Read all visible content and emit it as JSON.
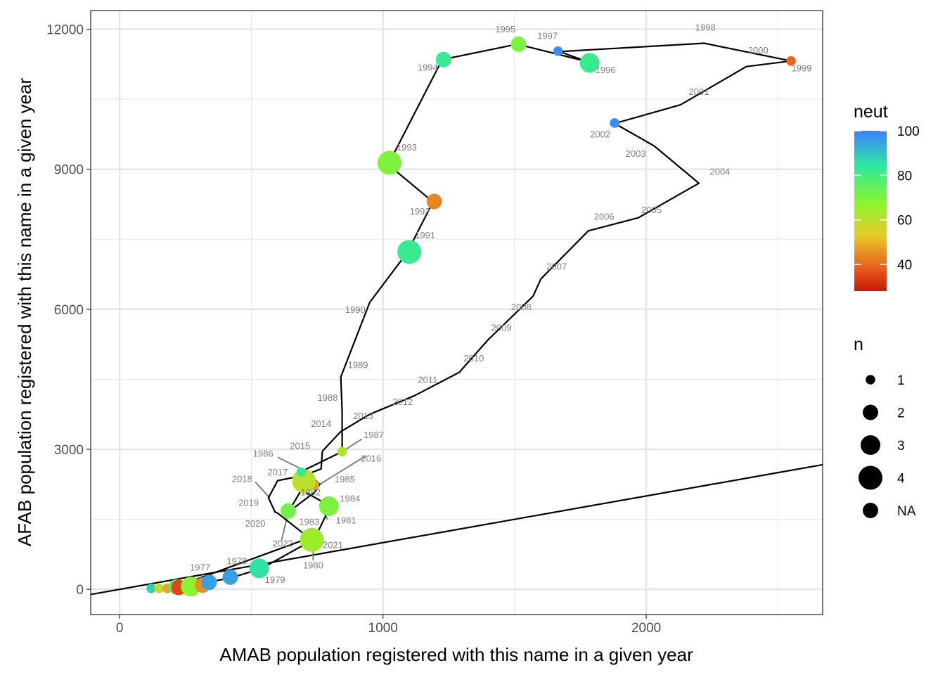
{
  "chart_data": {
    "type": "scatter",
    "xlabel": "AMAB population registered with this name in a given year",
    "ylabel": "AFAB population registered with this name in a given year",
    "xlim": [
      -110,
      2670
    ],
    "ylim": [
      -540,
      12400
    ],
    "x_ticks": [
      0,
      1000,
      2000
    ],
    "y_ticks": [
      0,
      3000,
      6000,
      9000,
      12000
    ],
    "grid": true,
    "reference_line": {
      "type": "y=x",
      "points": [
        [
          -110,
          -110
        ],
        [
          2670,
          2670
        ]
      ]
    },
    "path_order": [
      "1977",
      "1978",
      "1979",
      "1980",
      "1981",
      "1982",
      "1983",
      "1984",
      "1985",
      "1986",
      "1987",
      "1988",
      "1989",
      "1990",
      "1991",
      "1992",
      "1993",
      "1994",
      "1995",
      "1996",
      "1997",
      "1998",
      "1999",
      "2000",
      "2001",
      "2002",
      "2003",
      "2004",
      "2005",
      "2006",
      "2007",
      "2008",
      "2009",
      "2010",
      "2011",
      "2012",
      "2013",
      "2014",
      "2015",
      "2016",
      "2017",
      "2018",
      "2019",
      "2020",
      "2021",
      "2022"
    ],
    "path_points": [
      [
        310,
        130
      ],
      [
        420,
        240
      ],
      [
        540,
        450
      ],
      [
        740,
        1080
      ],
      [
        800,
        1780
      ],
      [
        690,
        2130
      ],
      [
        640,
        1650
      ],
      [
        740,
        2080
      ],
      [
        760,
        2250
      ],
      [
        700,
        2550
      ],
      [
        845,
        2950
      ],
      [
        845,
        3800
      ],
      [
        840,
        4550
      ],
      [
        950,
        6150
      ],
      [
        1090,
        7200
      ],
      [
        1190,
        8300
      ],
      [
        1020,
        9100
      ],
      [
        1225,
        11350
      ],
      [
        1510,
        11680
      ],
      [
        1780,
        11300
      ],
      [
        1670,
        11520
      ],
      [
        2220,
        11700
      ],
      [
        2550,
        11320
      ],
      [
        2380,
        11200
      ],
      [
        2130,
        10380
      ],
      [
        1880,
        9980
      ],
      [
        2030,
        9500
      ],
      [
        2200,
        8700
      ],
      [
        1970,
        7960
      ],
      [
        1780,
        7680
      ],
      [
        1600,
        6650
      ],
      [
        1570,
        6280
      ],
      [
        1400,
        5350
      ],
      [
        1290,
        4650
      ],
      [
        1120,
        4150
      ],
      [
        950,
        3750
      ],
      [
        840,
        3380
      ],
      [
        770,
        2960
      ],
      [
        765,
        2580
      ],
      [
        700,
        2440
      ],
      [
        600,
        2330
      ],
      [
        565,
        1960
      ],
      [
        590,
        1660
      ],
      [
        600,
        1630
      ],
      [
        720,
        1100
      ],
      [
        260,
        150
      ]
    ],
    "points": [
      {
        "x": 120,
        "y": 20,
        "n": 1,
        "neut": 88
      },
      {
        "x": 150,
        "y": 20,
        "n": 1,
        "neut": 60
      },
      {
        "x": 180,
        "y": 20,
        "n": 1,
        "neut": 48
      },
      {
        "x": 215,
        "y": 50,
        "n": 2,
        "neut": 78
      },
      {
        "x": 225,
        "y": 40,
        "n": 2,
        "neut": 35
      },
      {
        "x": 270,
        "y": 60,
        "n": 3,
        "neut": 68
      },
      {
        "x": 315,
        "y": 90,
        "n": 2,
        "neut": 45
      },
      {
        "x": 340,
        "y": 150,
        "n": 2,
        "neut": 95
      },
      {
        "x": 420,
        "y": 260,
        "n": 2,
        "neut": 95
      },
      {
        "x": 530,
        "y": 450,
        "n": 3,
        "neut": 85
      },
      {
        "x": 730,
        "y": 1060,
        "n": 4,
        "neut": 65
      },
      {
        "x": 640,
        "y": 1680,
        "n": 2,
        "neut": 72
      },
      {
        "x": 795,
        "y": 1780,
        "n": 3,
        "neut": 70
      },
      {
        "x": 740,
        "y": 2230,
        "n": 1,
        "neut": 48
      },
      {
        "x": 700,
        "y": 2320,
        "n": 4,
        "neut": 60
      },
      {
        "x": 690,
        "y": 2510,
        "n": 1,
        "neut": 82
      },
      {
        "x": 845,
        "y": 2950,
        "n": 1,
        "neut": 62
      },
      {
        "x": 1100,
        "y": 7230,
        "n": 4,
        "neut": 82
      },
      {
        "x": 1195,
        "y": 8310,
        "n": 2,
        "neut": 44
      },
      {
        "x": 1025,
        "y": 9140,
        "n": 4,
        "neut": 70
      },
      {
        "x": 1230,
        "y": 11350,
        "n": 2,
        "neut": 82
      },
      {
        "x": 1515,
        "y": 11680,
        "n": 2,
        "neut": 70
      },
      {
        "x": 1665,
        "y": 11530,
        "n": 1,
        "neut": 98
      },
      {
        "x": 1785,
        "y": 11280,
        "n": 3,
        "neut": 82
      },
      {
        "x": 2550,
        "y": 11320,
        "n": 1,
        "neut": 40
      },
      {
        "x": 1880,
        "y": 9990,
        "n": 1,
        "neut": 98
      }
    ],
    "year_labels": [
      {
        "text": "1977",
        "x": 305,
        "y": 400
      },
      {
        "text": "1978",
        "x": 445,
        "y": 540
      },
      {
        "text": "1979",
        "x": 590,
        "y": 140
      },
      {
        "text": "1980",
        "x": 735,
        "y": 450
      },
      {
        "text": "1981",
        "x": 860,
        "y": 1410
      },
      {
        "text": "1982",
        "x": 725,
        "y": 2010
      },
      {
        "text": "1983",
        "x": 720,
        "y": 1380
      },
      {
        "text": "1984",
        "x": 875,
        "y": 1880
      },
      {
        "text": "1985",
        "x": 855,
        "y": 2290
      },
      {
        "text": "1986",
        "x": 545,
        "y": 2840
      },
      {
        "text": "1987",
        "x": 965,
        "y": 3240
      },
      {
        "text": "1988",
        "x": 790,
        "y": 4040
      },
      {
        "text": "1989",
        "x": 905,
        "y": 4740
      },
      {
        "text": "1990",
        "x": 895,
        "y": 5920
      },
      {
        "text": "1991",
        "x": 1160,
        "y": 7520
      },
      {
        "text": "1992",
        "x": 1140,
        "y": 8030
      },
      {
        "text": "1993",
        "x": 1090,
        "y": 9400
      },
      {
        "text": "1994",
        "x": 1170,
        "y": 11110
      },
      {
        "text": "1995",
        "x": 1465,
        "y": 11930
      },
      {
        "text": "1996",
        "x": 1845,
        "y": 11060
      },
      {
        "text": "1997",
        "x": 1625,
        "y": 11790
      },
      {
        "text": "1998",
        "x": 2225,
        "y": 11970
      },
      {
        "text": "1999",
        "x": 2590,
        "y": 11100
      },
      {
        "text": "2000",
        "x": 2425,
        "y": 11480
      },
      {
        "text": "2001",
        "x": 2200,
        "y": 10590
      },
      {
        "text": "2002",
        "x": 1825,
        "y": 9680
      },
      {
        "text": "2003",
        "x": 1960,
        "y": 9270
      },
      {
        "text": "2004",
        "x": 2280,
        "y": 8880
      },
      {
        "text": "2005",
        "x": 2020,
        "y": 8060
      },
      {
        "text": "2006",
        "x": 1840,
        "y": 7920
      },
      {
        "text": "2007",
        "x": 1660,
        "y": 6850
      },
      {
        "text": "2008",
        "x": 1525,
        "y": 5980
      },
      {
        "text": "2009",
        "x": 1450,
        "y": 5540
      },
      {
        "text": "2010",
        "x": 1345,
        "y": 4880
      },
      {
        "text": "2011",
        "x": 1170,
        "y": 4420
      },
      {
        "text": "2012",
        "x": 1075,
        "y": 3950
      },
      {
        "text": "2013",
        "x": 925,
        "y": 3650
      },
      {
        "text": "2014",
        "x": 765,
        "y": 3480
      },
      {
        "text": "2015",
        "x": 685,
        "y": 3010
      },
      {
        "text": "2016",
        "x": 955,
        "y": 2740
      },
      {
        "text": "2017",
        "x": 600,
        "y": 2440
      },
      {
        "text": "2018",
        "x": 465,
        "y": 2300
      },
      {
        "text": "2019",
        "x": 490,
        "y": 1790
      },
      {
        "text": "2020",
        "x": 515,
        "y": 1340
      },
      {
        "text": "2021",
        "x": 810,
        "y": 880
      },
      {
        "text": "2022",
        "x": 620,
        "y": 910
      }
    ],
    "label_segments": [
      [
        [
          700,
          2550
        ],
        [
          600,
          2830
        ]
      ],
      [
        [
          845,
          2950
        ],
        [
          920,
          3220
        ]
      ],
      [
        [
          760,
          2250
        ],
        [
          935,
          2860
        ]
      ],
      [
        [
          570,
          1960
        ],
        [
          515,
          2300
        ]
      ],
      [
        [
          640,
          1650
        ],
        [
          615,
          1050
        ]
      ],
      [
        [
          735,
          1060
        ],
        [
          735,
          620
        ]
      ],
      [
        [
          760,
          1780
        ],
        [
          790,
          1500
        ]
      ]
    ],
    "legends": {
      "color": {
        "title": "neut",
        "labels": [
          "100",
          "80",
          "60",
          "40"
        ],
        "values": [
          100,
          80,
          60,
          40
        ],
        "range": [
          28,
          100
        ]
      },
      "size": {
        "title": "n",
        "labels": [
          "1",
          "2",
          "3",
          "4",
          "NA"
        ]
      }
    }
  }
}
